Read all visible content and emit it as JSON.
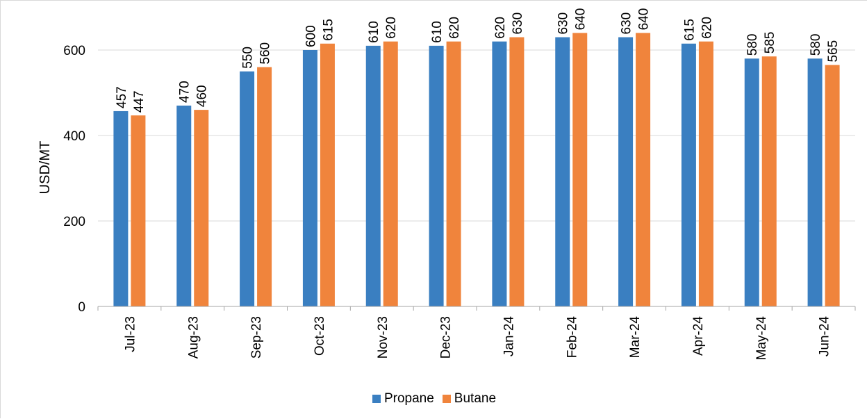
{
  "chart_data": {
    "type": "bar",
    "categories": [
      "Jul-23",
      "Aug-23",
      "Sep-23",
      "Oct-23",
      "Nov-23",
      "Dec-23",
      "Jan-24",
      "Feb-24",
      "Mar-24",
      "Apr-24",
      "May-24",
      "Jun-24"
    ],
    "series": [
      {
        "name": "Propane",
        "color": "#3a7fc1",
        "values": [
          457,
          470,
          550,
          600,
          610,
          610,
          620,
          630,
          630,
          615,
          580,
          580
        ]
      },
      {
        "name": "Butane",
        "color": "#f0843c",
        "values": [
          447,
          460,
          560,
          615,
          620,
          620,
          630,
          640,
          640,
          620,
          585,
          565
        ]
      }
    ],
    "ylabel": "USD/MT",
    "xlabel": "",
    "ylim": [
      0,
      700
    ],
    "yticks": [
      0,
      200,
      400,
      600
    ],
    "grid": true,
    "legend": "bottom-center",
    "data_labels": true
  }
}
